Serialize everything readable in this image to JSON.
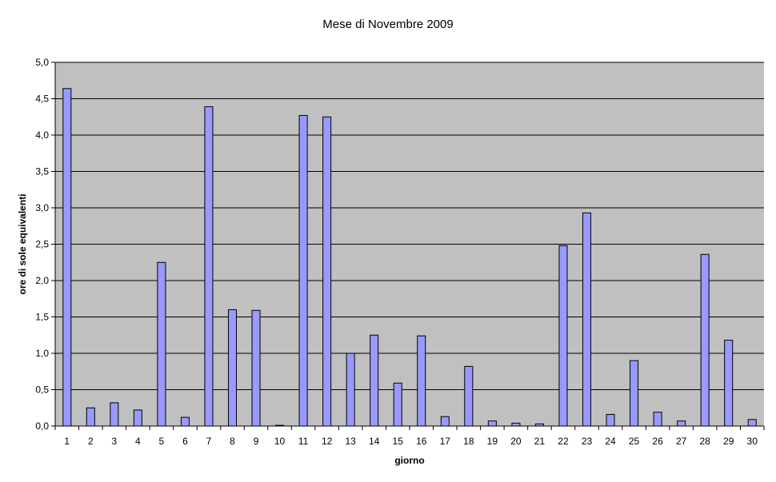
{
  "chart_data": {
    "type": "bar",
    "title": "Mese di Novembre 2009",
    "xlabel": "giorno",
    "ylabel": "ore di sole equivalenti",
    "ylim": [
      0,
      5
    ],
    "y_ticks": [
      "0,0",
      "0,5",
      "1,0",
      "1,5",
      "2,0",
      "2,5",
      "3,0",
      "3,5",
      "4,0",
      "4,5",
      "5,0"
    ],
    "categories": [
      "1",
      "2",
      "3",
      "4",
      "5",
      "6",
      "7",
      "8",
      "9",
      "10",
      "11",
      "12",
      "13",
      "14",
      "15",
      "16",
      "17",
      "18",
      "19",
      "20",
      "21",
      "22",
      "23",
      "24",
      "25",
      "26",
      "27",
      "28",
      "29",
      "30"
    ],
    "values": [
      4.64,
      0.25,
      0.32,
      0.22,
      2.25,
      0.12,
      4.39,
      1.6,
      1.59,
      0.01,
      4.27,
      4.25,
      1.0,
      1.25,
      0.59,
      1.24,
      0.13,
      0.82,
      0.07,
      0.04,
      0.03,
      2.48,
      2.93,
      0.16,
      0.9,
      0.19,
      0.07,
      2.36,
      1.18,
      0.09
    ],
    "grid": true,
    "legend": "none",
    "colors": {
      "bar_fill": "#9999ff",
      "bar_stroke": "#000000",
      "plot_background": "#c0c0c0",
      "gridline": "#000000"
    }
  }
}
